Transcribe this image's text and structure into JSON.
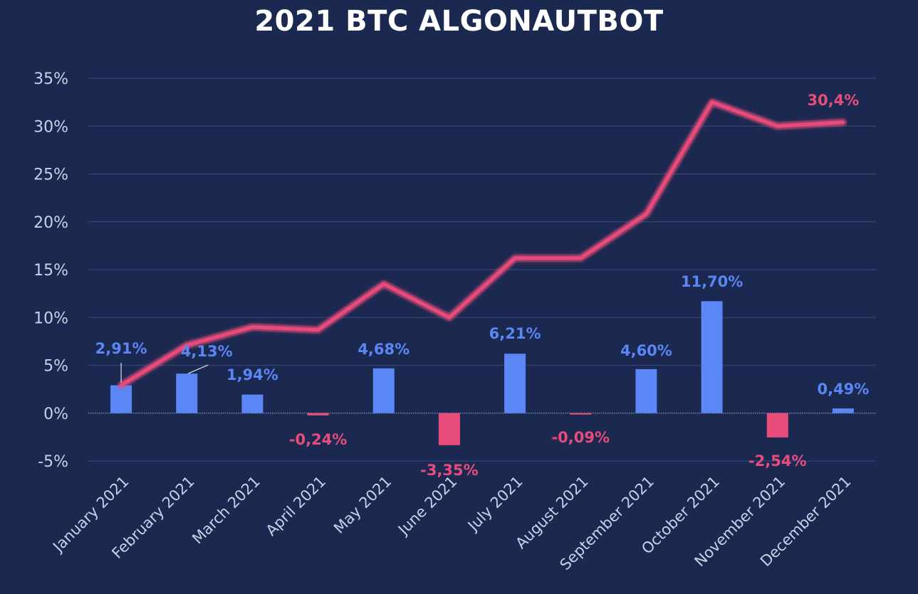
{
  "chart_data": {
    "type": "bar",
    "title": "2021 BTC ALGONAUTBOT",
    "xlabel": "",
    "ylabel": "",
    "ylim": [
      -5,
      35
    ],
    "yticks": [
      -5,
      0,
      5,
      10,
      15,
      20,
      25,
      30,
      35
    ],
    "ytick_labels": [
      "-5%",
      "0%",
      "5%",
      "10%",
      "15%",
      "20%",
      "25%",
      "30%",
      "35%"
    ],
    "grid": "horizontal",
    "categories": [
      "January 2021",
      "February 2021",
      "March 2021",
      "April 2021",
      "May 2021",
      "June 2021",
      "July 2021",
      "August 2021",
      "September 2021",
      "October 2021",
      "November 2021",
      "December 2021"
    ],
    "series": [
      {
        "type": "bar",
        "values": [
          2.91,
          4.13,
          1.94,
          -0.24,
          4.68,
          -3.35,
          6.21,
          -0.09,
          4.6,
          11.7,
          -2.54,
          0.49
        ],
        "labels": [
          "2,91%",
          "4,13%",
          "1,94%",
          "-0,24%",
          "4,68%",
          "-3,35%",
          "6,21%",
          "-0,09%",
          "4,60%",
          "11,70%",
          "-2,54%",
          "0,49%"
        ]
      },
      {
        "type": "line",
        "values": [
          2.91,
          7.1,
          9.0,
          8.7,
          13.5,
          10.0,
          16.2,
          16.2,
          20.8,
          32.5,
          30.0,
          30.4
        ],
        "end_label": "30,4%"
      }
    ],
    "colors": {
      "positive": "#5b86f5",
      "negative": "#e84c7a",
      "line": "#e84c7a",
      "positive_label": "#5b86f5",
      "negative_label": "#e84c7a",
      "background": "#1b2850",
      "grid": "#34457a"
    }
  }
}
